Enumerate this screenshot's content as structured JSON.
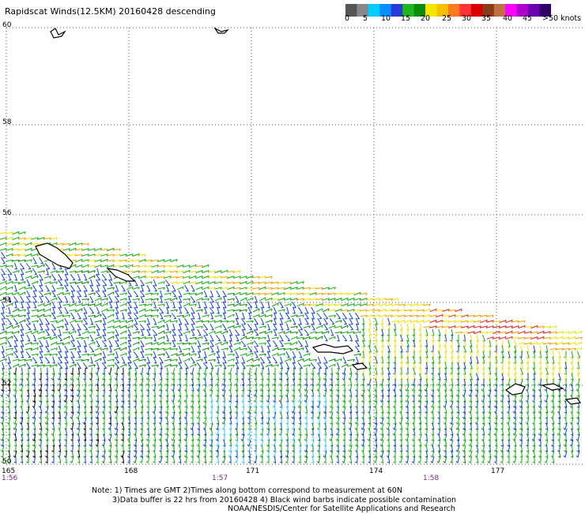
{
  "title": "Rapidscat Winds(12.5KM) 20160428 descending",
  "legend": {
    "colors": [
      "#555555",
      "#888888",
      "#00ccff",
      "#0090ff",
      "#2a3ad8",
      "#1eb81e",
      "#0a8c0a",
      "#f5e600",
      "#f5c000",
      "#ff7a1a",
      "#ff3333",
      "#d80000",
      "#8b3a1a",
      "#c07040",
      "#ff00ff",
      "#b000d0",
      "#6a00b0",
      "#30006a"
    ],
    "labels": [
      "0",
      "5",
      "10",
      "15",
      "20",
      "25",
      "30",
      "35",
      "40",
      "45",
      ">50 knots"
    ]
  },
  "map": {
    "lat_labels": [
      "60",
      "58",
      "56",
      "54",
      "52",
      "50"
    ],
    "lon_labels": [
      "165",
      "168",
      "171",
      "174",
      "177"
    ],
    "time_labels": [
      "1:56",
      "1:57",
      "1:58"
    ],
    "wind_colors": {
      "light_blue": "#33ccff",
      "blue": "#1040d0",
      "dark_blue": "#0a28a0",
      "green": "#10b010",
      "dark_green": "#0a8a0a",
      "yellow": "#f0e000",
      "orange": "#f5a000",
      "red": "#e02020",
      "black": "#000000"
    }
  },
  "notes": [
    "Note: 1) Times are GMT 2)Times along bottom correspond to measurement at 60N",
    "3)Data buffer is 22 hrs from 20160428 4) Black wind barbs indicate possible contamination",
    "NOAA/NESDIS/Center for Satellite Applications and Research"
  ]
}
